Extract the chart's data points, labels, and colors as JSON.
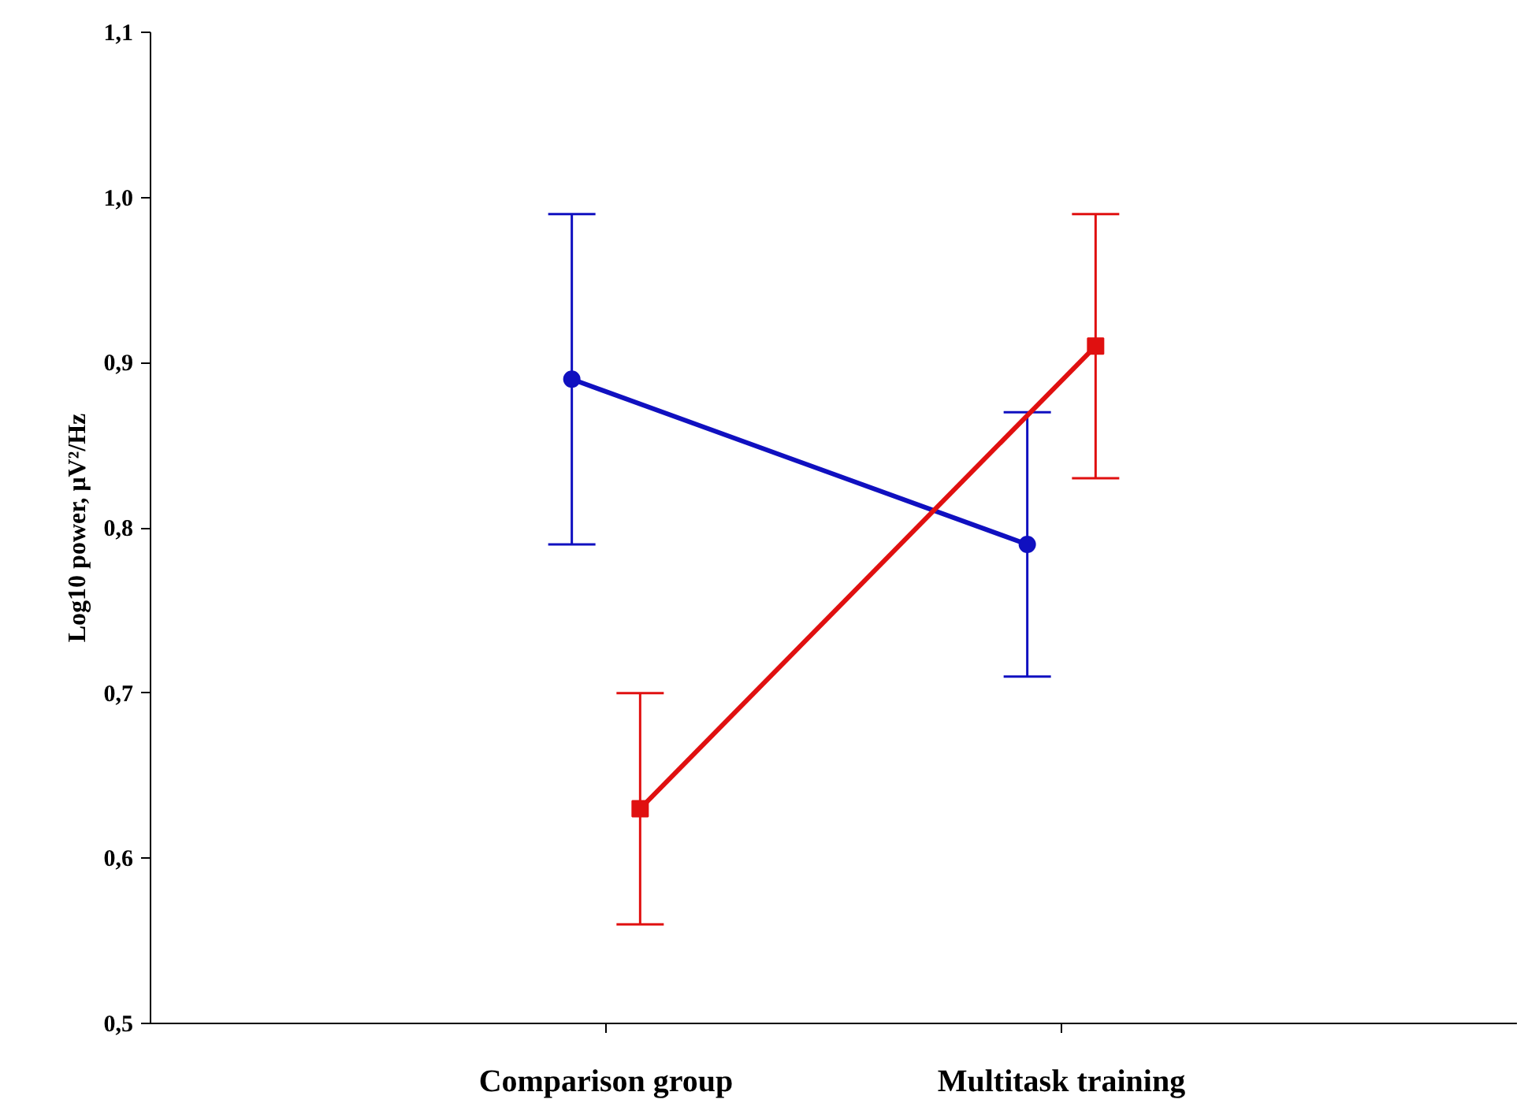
{
  "chart_data": {
    "type": "line",
    "ylabel": "Log10 power, μV²/Hz",
    "categories": [
      "Comparison group",
      "Multitask training"
    ],
    "series": [
      {
        "color": "#1010c0",
        "marker": "circle",
        "values": [
          0.89,
          0.79
        ],
        "errors": [
          [
            0.79,
            0.99
          ],
          [
            0.71,
            0.87
          ]
        ]
      },
      {
        "color": "#e01010",
        "marker": "square",
        "values": [
          0.63,
          0.91
        ],
        "errors": [
          [
            0.56,
            0.7
          ],
          [
            0.83,
            0.99
          ]
        ]
      }
    ],
    "ylim": [
      0.5,
      1.1
    ],
    "yticks": [
      {
        "value": 0.5,
        "label": "0,5"
      },
      {
        "value": 0.6,
        "label": "0,6"
      },
      {
        "value": 0.7,
        "label": "0,7"
      },
      {
        "value": 0.8,
        "label": "0,8"
      },
      {
        "value": 0.9,
        "label": "0,9"
      },
      {
        "value": 1.0,
        "label": "1,0"
      },
      {
        "value": 1.1,
        "label": "1,1"
      }
    ],
    "line_style": "solid"
  }
}
